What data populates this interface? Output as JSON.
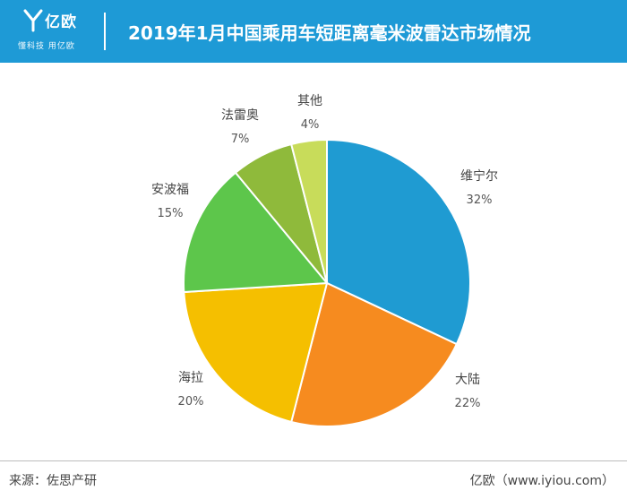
{
  "header": {
    "logo_name": "亿欧",
    "logo_tagline": "懂科技 用亿欧",
    "background_color": "#1e9ad6"
  },
  "chart_data": {
    "type": "pie",
    "title": "2019年1月中国乘用车短距离毫米波雷达市场情况",
    "start": "12 o'clock",
    "direction": "clockwise",
    "slices": [
      {
        "label": "维宁尔",
        "value": 32,
        "display": "32%",
        "color": "#1f9bd2"
      },
      {
        "label": "大陆",
        "value": 22,
        "display": "22%",
        "color": "#f68b1f"
      },
      {
        "label": "海拉",
        "value": 20,
        "display": "20%",
        "color": "#f5bf00"
      },
      {
        "label": "安波福",
        "value": 15,
        "display": "15%",
        "color": "#5dc64b"
      },
      {
        "label": "法雷奥",
        "value": 7,
        "display": "7%",
        "color": "#8fba3b"
      },
      {
        "label": "其他",
        "value": 4,
        "display": "4%",
        "color": "#c8dc5a"
      }
    ]
  },
  "footer": {
    "source": "来源：佐思产研",
    "credit": "亿欧（www.iyiou.com）"
  }
}
